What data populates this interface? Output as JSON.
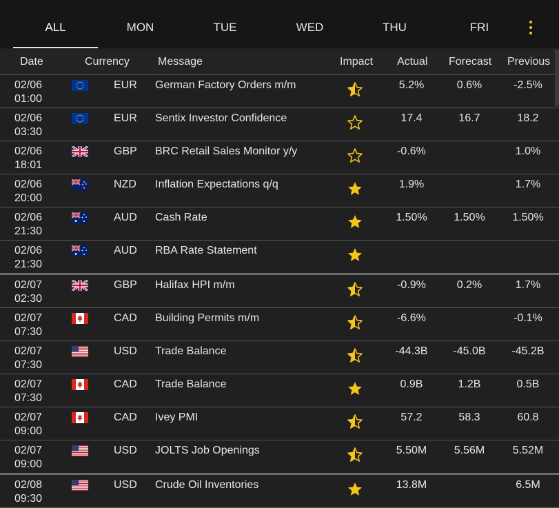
{
  "tabs": [
    {
      "label": "ALL",
      "active": true
    },
    {
      "label": "MON",
      "active": false
    },
    {
      "label": "TUE",
      "active": false
    },
    {
      "label": "WED",
      "active": false
    },
    {
      "label": "THU",
      "active": false
    },
    {
      "label": "FRI",
      "active": false
    }
  ],
  "menu_icon": "kebab-menu-icon",
  "accent_color": "#f5c518",
  "columns": {
    "date": "Date",
    "currency": "Currency",
    "message": "Message",
    "impact": "Impact",
    "actual": "Actual",
    "forecast": "Forecast",
    "previous": "Previous"
  },
  "events": [
    {
      "date": "02/06",
      "time": "01:00",
      "flag": "eu",
      "currency": "EUR",
      "message": "German Factory Orders m/m",
      "impact": "medium",
      "actual": "5.2%",
      "forecast": "0.6%",
      "previous": "-2.5%"
    },
    {
      "date": "02/06",
      "time": "03:30",
      "flag": "eu",
      "currency": "EUR",
      "message": "Sentix Investor Confidence",
      "impact": "low",
      "actual": "17.4",
      "forecast": "16.7",
      "previous": "18.2"
    },
    {
      "date": "02/06",
      "time": "18:01",
      "flag": "uk",
      "currency": "GBP",
      "message": "BRC Retail Sales Monitor y/y",
      "impact": "low",
      "actual": "-0.6%",
      "forecast": "",
      "previous": "1.0%"
    },
    {
      "date": "02/06",
      "time": "20:00",
      "flag": "nz",
      "currency": "NZD",
      "message": "Inflation Expectations q/q",
      "impact": "high",
      "actual": "1.9%",
      "forecast": "",
      "previous": "1.7%"
    },
    {
      "date": "02/06",
      "time": "21:30",
      "flag": "au",
      "currency": "AUD",
      "message": "Cash Rate",
      "impact": "high",
      "actual": "1.50%",
      "forecast": "1.50%",
      "previous": "1.50%"
    },
    {
      "date": "02/06",
      "time": "21:30",
      "flag": "au",
      "currency": "AUD",
      "message": "RBA Rate Statement",
      "impact": "high",
      "actual": "",
      "forecast": "",
      "previous": "",
      "daysplit": true
    },
    {
      "date": "02/07",
      "time": "02:30",
      "flag": "uk",
      "currency": "GBP",
      "message": "Halifax HPI m/m",
      "impact": "medium",
      "actual": "-0.9%",
      "forecast": "0.2%",
      "previous": "1.7%"
    },
    {
      "date": "02/07",
      "time": "07:30",
      "flag": "ca",
      "currency": "CAD",
      "message": "Building Permits m/m",
      "impact": "medium",
      "actual": "-6.6%",
      "forecast": "",
      "previous": "-0.1%"
    },
    {
      "date": "02/07",
      "time": "07:30",
      "flag": "us",
      "currency": "USD",
      "message": "Trade Balance",
      "impact": "medium",
      "actual": "-44.3B",
      "forecast": "-45.0B",
      "previous": "-45.2B"
    },
    {
      "date": "02/07",
      "time": "07:30",
      "flag": "ca",
      "currency": "CAD",
      "message": "Trade Balance",
      "impact": "high",
      "actual": "0.9B",
      "forecast": "1.2B",
      "previous": "0.5B"
    },
    {
      "date": "02/07",
      "time": "09:00",
      "flag": "ca",
      "currency": "CAD",
      "message": "Ivey PMI",
      "impact": "medium",
      "actual": "57.2",
      "forecast": "58.3",
      "previous": "60.8"
    },
    {
      "date": "02/07",
      "time": "09:00",
      "flag": "us",
      "currency": "USD",
      "message": "JOLTS Job Openings",
      "impact": "medium",
      "actual": "5.50M",
      "forecast": "5.56M",
      "previous": "5.52M",
      "daysplit": true
    },
    {
      "date": "02/08",
      "time": "09:30",
      "flag": "us",
      "currency": "USD",
      "message": "Crude Oil Inventories",
      "impact": "high",
      "actual": "13.8M",
      "forecast": "",
      "previous": "6.5M"
    }
  ]
}
